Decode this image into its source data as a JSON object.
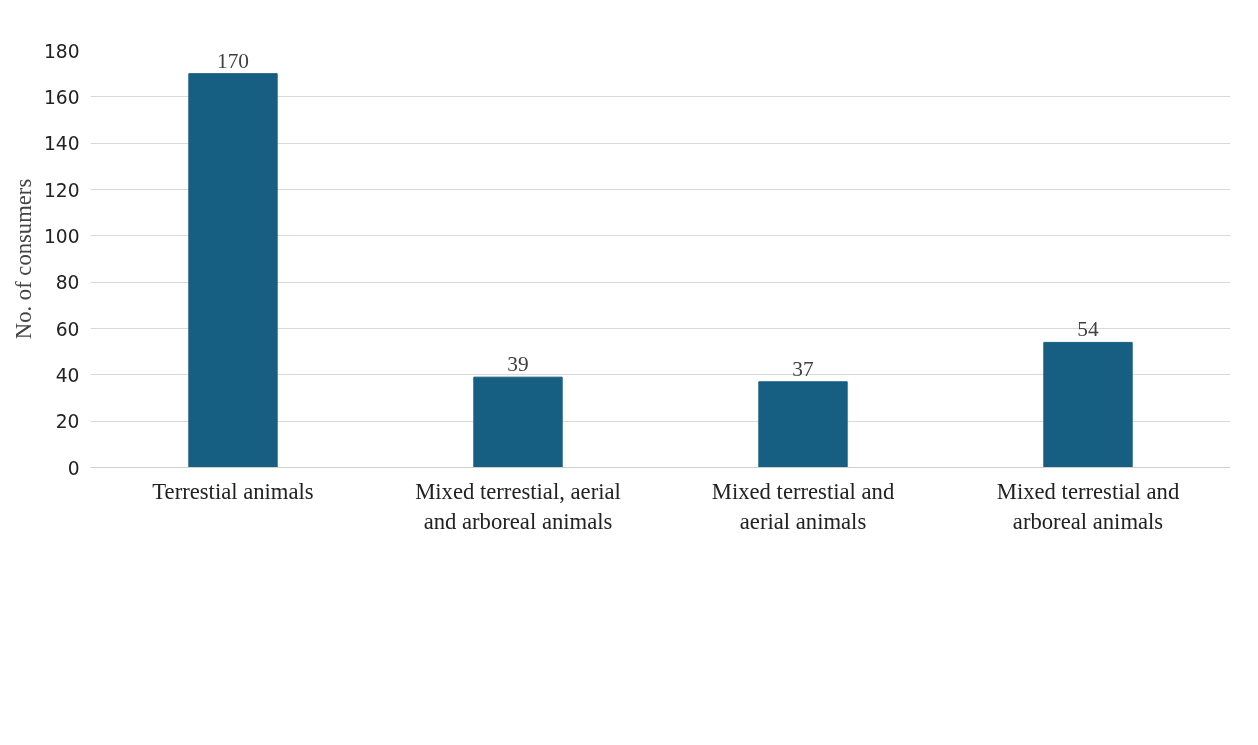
{
  "chart_data": {
    "type": "bar",
    "ylabel": "No. of consumers",
    "categories": [
      "Terrestial animals",
      "Mixed terrestial, aerial and arboreal animals",
      "Mixed terrestial and aerial animals",
      "Mixed terrestial and arboreal animals"
    ],
    "values": [
      170,
      39,
      37,
      54
    ],
    "color": "#175f82",
    "ylim": [
      0,
      180
    ],
    "yticks": [
      0,
      20,
      40,
      60,
      80,
      100,
      120,
      140,
      160,
      180
    ],
    "grid": "y",
    "data_labels": true
  }
}
